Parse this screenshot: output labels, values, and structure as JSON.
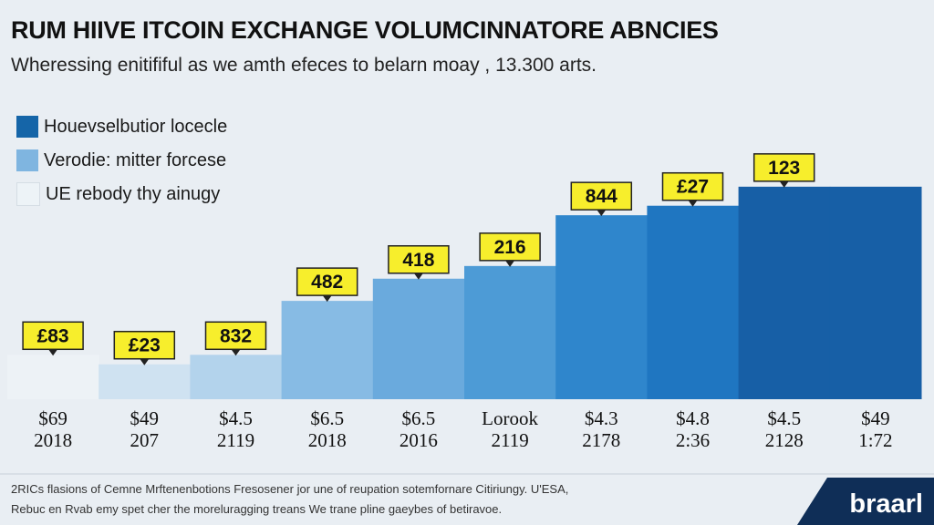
{
  "chart_data": {
    "type": "bar",
    "title": "RUM HIIVE ITCOIN EXCHANGE VOLUMCINNATORE ABNCIES",
    "subtitle": "Wheressing enitififul as we amth efeces to belarn moay , 13.300 arts.",
    "legend": [
      {
        "label": "Houevselbutior locecle",
        "color": "#1565a8"
      },
      {
        "label": "Verodie: mitter forcese",
        "color": "#7fb5e0"
      },
      {
        "label": "UE rebody thy ainugy",
        "color": "#edf3f7"
      }
    ],
    "categories": [
      {
        "line1": "$69",
        "line2": "2018"
      },
      {
        "line1": "$49",
        "line2": "207"
      },
      {
        "line1": "$4.5",
        "line2": "2119"
      },
      {
        "line1": "$6.5",
        "line2": "2018"
      },
      {
        "line1": "$6.5",
        "line2": "2016"
      },
      {
        "line1": "Lorook",
        "line2": "2119"
      },
      {
        "line1": "$4.3",
        "line2": "2178"
      },
      {
        "line1": "$4.8",
        "line2": "2:36"
      },
      {
        "line1": "$4.5",
        "line2": "2128"
      },
      {
        "line1": "$49",
        "line2": "1:72"
      }
    ],
    "data_labels": [
      "£83",
      "£23",
      "832",
      "482",
      "418",
      "216",
      "844",
      "£27",
      "123",
      ""
    ],
    "values": [
      14,
      11,
      14,
      31,
      38,
      42,
      58,
      61,
      67,
      67
    ],
    "bar_colors": [
      "#edf2f6",
      "#cfe2f1",
      "#b3d3ec",
      "#87bbe4",
      "#6aaadd",
      "#4d9bd6",
      "#2f86cc",
      "#1f76c1",
      "#175fa6",
      "#175fa6"
    ],
    "ylim": [
      0,
      100
    ],
    "grid": false,
    "legend_position": "top-left"
  },
  "footnote": [
    "2RICs flasions of Cemne Mrftenenbotions Fresosener jor une of reupation sotemfornare Citiriungy. U'ESA,",
    "Rebuc en Rvab emy spet cher the moreluragging treans We trane pline gaeybes of betiravoe."
  ],
  "logo_text": "braarl"
}
